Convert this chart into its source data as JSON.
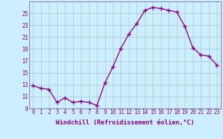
{
  "x": [
    0,
    1,
    2,
    3,
    4,
    5,
    6,
    7,
    8,
    9,
    10,
    11,
    12,
    13,
    14,
    15,
    16,
    17,
    18,
    19,
    20,
    21,
    22,
    23
  ],
  "y": [
    12.8,
    12.4,
    12.2,
    10.0,
    10.8,
    10.0,
    10.2,
    10.0,
    9.5,
    13.3,
    16.0,
    19.1,
    21.5,
    23.3,
    25.5,
    26.0,
    25.8,
    25.5,
    25.2,
    22.8,
    19.2,
    18.0,
    17.8,
    16.3
  ],
  "line_color": "#880088",
  "marker": "+",
  "marker_size": 4,
  "bg_color": "#cceeff",
  "grid_color": "#aacccc",
  "xlabel": "Windchill (Refroidissement éolien,°C)",
  "xlabel_color": "#880088",
  "tick_color": "#880088",
  "spine_color": "#8888aa",
  "ylim": [
    9,
    27
  ],
  "xlim": [
    -0.5,
    23.5
  ],
  "yticks": [
    9,
    11,
    13,
    15,
    17,
    19,
    21,
    23,
    25
  ],
  "xticks": [
    0,
    1,
    2,
    3,
    4,
    5,
    6,
    7,
    8,
    9,
    10,
    11,
    12,
    13,
    14,
    15,
    16,
    17,
    18,
    19,
    20,
    21,
    22,
    23
  ],
  "xtick_labels": [
    "0",
    "1",
    "2",
    "3",
    "4",
    "5",
    "6",
    "7",
    "8",
    "9",
    "10",
    "11",
    "12",
    "13",
    "14",
    "15",
    "16",
    "17",
    "18",
    "19",
    "20",
    "21",
    "22",
    "23"
  ],
  "linewidth": 1.0,
  "tick_fontsize": 5.5,
  "xlabel_fontsize": 6.5
}
